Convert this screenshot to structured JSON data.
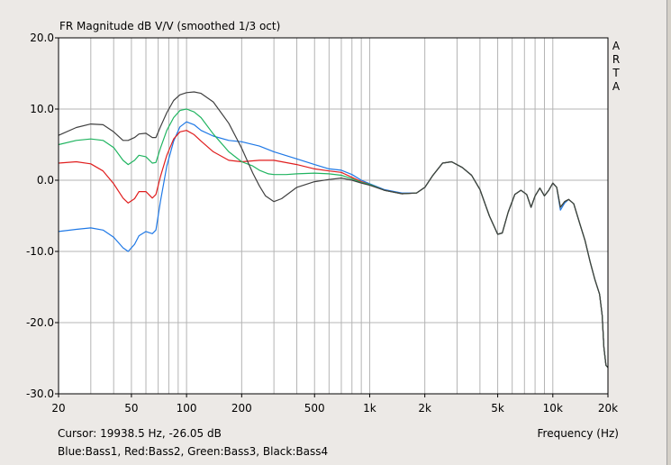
{
  "chart_data": {
    "type": "line",
    "title": "FR Magnitude dB V/V (smoothed 1/3 oct)",
    "side_label": "A R T A",
    "xlabel": "Frequency (Hz)",
    "xscale": "log",
    "xlim": [
      20,
      20000
    ],
    "ylim": [
      -30,
      20
    ],
    "grid": true,
    "x_ticks": [
      {
        "v": 20,
        "label": "20"
      },
      {
        "v": 50,
        "label": "50"
      },
      {
        "v": 100,
        "label": "100"
      },
      {
        "v": 200,
        "label": "200"
      },
      {
        "v": 500,
        "label": "500"
      },
      {
        "v": 1000,
        "label": "1k"
      },
      {
        "v": 2000,
        "label": "2k"
      },
      {
        "v": 5000,
        "label": "5k"
      },
      {
        "v": 10000,
        "label": "10k"
      },
      {
        "v": 20000,
        "label": "20k"
      }
    ],
    "y_ticks": [
      {
        "v": 20,
        "label": "20.0"
      },
      {
        "v": 10,
        "label": "10.0"
      },
      {
        "v": 0,
        "label": "0.0"
      },
      {
        "v": -10,
        "label": "-10.0"
      },
      {
        "v": -20,
        "label": "-20.0"
      },
      {
        "v": -30,
        "label": "-30.0"
      }
    ],
    "series": [
      {
        "name": "Bass1",
        "color": "#1e78e6",
        "points": [
          [
            20,
            -7.2
          ],
          [
            25,
            -6.9
          ],
          [
            30,
            -6.7
          ],
          [
            35,
            -7.0
          ],
          [
            40,
            -8.0
          ],
          [
            45,
            -9.5
          ],
          [
            48,
            -10.0
          ],
          [
            52,
            -9.0
          ],
          [
            55,
            -7.8
          ],
          [
            60,
            -7.2
          ],
          [
            65,
            -7.5
          ],
          [
            68,
            -7.0
          ],
          [
            72,
            -3.0
          ],
          [
            78,
            2.0
          ],
          [
            85,
            5.5
          ],
          [
            92,
            7.5
          ],
          [
            100,
            8.2
          ],
          [
            110,
            7.8
          ],
          [
            120,
            7.0
          ],
          [
            140,
            6.2
          ],
          [
            170,
            5.6
          ],
          [
            200,
            5.4
          ],
          [
            250,
            4.8
          ],
          [
            300,
            4.0
          ],
          [
            400,
            3.0
          ],
          [
            500,
            2.2
          ],
          [
            600,
            1.6
          ],
          [
            700,
            1.4
          ],
          [
            800,
            0.8
          ],
          [
            900,
            0.0
          ],
          [
            1000,
            -0.5
          ],
          [
            1200,
            -1.3
          ],
          [
            1500,
            -1.8
          ],
          [
            1800,
            -1.8
          ],
          [
            2000,
            -1.0
          ],
          [
            2200,
            0.6
          ],
          [
            2500,
            2.4
          ],
          [
            2800,
            2.6
          ],
          [
            3200,
            1.8
          ],
          [
            3600,
            0.7
          ],
          [
            4000,
            -1.3
          ],
          [
            4500,
            -5.0
          ],
          [
            5000,
            -7.6
          ],
          [
            5300,
            -7.4
          ],
          [
            5700,
            -4.5
          ],
          [
            6200,
            -2.0
          ],
          [
            6700,
            -1.4
          ],
          [
            7200,
            -2.0
          ],
          [
            7600,
            -3.8
          ],
          [
            8000,
            -2.2
          ],
          [
            8500,
            -1.1
          ],
          [
            9000,
            -2.2
          ],
          [
            9500,
            -1.4
          ],
          [
            10000,
            -0.4
          ],
          [
            10500,
            -1.0
          ],
          [
            11000,
            -4.2
          ],
          [
            11600,
            -3.2
          ],
          [
            12200,
            -2.7
          ],
          [
            13000,
            -3.3
          ],
          [
            14000,
            -6.0
          ],
          [
            15000,
            -8.5
          ],
          [
            16000,
            -11.5
          ],
          [
            17000,
            -14.0
          ],
          [
            18000,
            -16.0
          ],
          [
            18600,
            -19.0
          ],
          [
            19000,
            -23.5
          ],
          [
            19500,
            -26.0
          ],
          [
            20000,
            -26.3
          ]
        ]
      },
      {
        "name": "Bass2",
        "color": "#e01e1e",
        "points": [
          [
            20,
            2.4
          ],
          [
            25,
            2.6
          ],
          [
            30,
            2.3
          ],
          [
            35,
            1.3
          ],
          [
            40,
            -0.5
          ],
          [
            45,
            -2.5
          ],
          [
            48,
            -3.2
          ],
          [
            52,
            -2.6
          ],
          [
            55,
            -1.6
          ],
          [
            60,
            -1.6
          ],
          [
            65,
            -2.5
          ],
          [
            68,
            -2.0
          ],
          [
            72,
            0.5
          ],
          [
            78,
            3.5
          ],
          [
            85,
            5.8
          ],
          [
            92,
            6.8
          ],
          [
            100,
            7.0
          ],
          [
            110,
            6.4
          ],
          [
            120,
            5.5
          ],
          [
            140,
            4.0
          ],
          [
            170,
            2.8
          ],
          [
            200,
            2.6
          ],
          [
            250,
            2.8
          ],
          [
            300,
            2.8
          ],
          [
            400,
            2.2
          ],
          [
            500,
            1.6
          ],
          [
            600,
            1.3
          ],
          [
            700,
            1.1
          ],
          [
            800,
            0.4
          ],
          [
            900,
            -0.2
          ],
          [
            1000,
            -0.6
          ],
          [
            1200,
            -1.4
          ],
          [
            1500,
            -1.9
          ],
          [
            1800,
            -1.8
          ],
          [
            2000,
            -1.0
          ],
          [
            2200,
            0.6
          ],
          [
            2500,
            2.4
          ],
          [
            2800,
            2.6
          ],
          [
            3200,
            1.8
          ],
          [
            3600,
            0.7
          ],
          [
            4000,
            -1.3
          ],
          [
            4500,
            -5.0
          ],
          [
            5000,
            -7.6
          ],
          [
            5300,
            -7.4
          ],
          [
            5700,
            -4.5
          ],
          [
            6200,
            -2.0
          ],
          [
            6700,
            -1.4
          ],
          [
            7200,
            -2.0
          ],
          [
            7600,
            -3.8
          ],
          [
            8000,
            -2.2
          ],
          [
            8500,
            -1.1
          ],
          [
            9000,
            -2.2
          ],
          [
            9500,
            -1.4
          ],
          [
            10000,
            -0.4
          ],
          [
            10500,
            -1.0
          ],
          [
            11000,
            -3.8
          ],
          [
            11600,
            -3.0
          ],
          [
            12200,
            -2.7
          ],
          [
            13000,
            -3.3
          ],
          [
            14000,
            -6.0
          ],
          [
            15000,
            -8.5
          ],
          [
            16000,
            -11.5
          ],
          [
            17000,
            -14.0
          ],
          [
            18000,
            -16.0
          ],
          [
            18600,
            -19.0
          ],
          [
            19000,
            -23.5
          ],
          [
            19500,
            -26.0
          ],
          [
            20000,
            -26.3
          ]
        ]
      },
      {
        "name": "Bass3",
        "color": "#20b460",
        "points": [
          [
            20,
            5.0
          ],
          [
            25,
            5.6
          ],
          [
            30,
            5.8
          ],
          [
            35,
            5.6
          ],
          [
            40,
            4.6
          ],
          [
            45,
            2.8
          ],
          [
            48,
            2.2
          ],
          [
            52,
            2.8
          ],
          [
            55,
            3.5
          ],
          [
            60,
            3.3
          ],
          [
            65,
            2.4
          ],
          [
            68,
            2.5
          ],
          [
            72,
            4.5
          ],
          [
            78,
            7.0
          ],
          [
            85,
            8.8
          ],
          [
            92,
            9.8
          ],
          [
            100,
            10.0
          ],
          [
            110,
            9.6
          ],
          [
            120,
            8.8
          ],
          [
            140,
            6.5
          ],
          [
            170,
            4.0
          ],
          [
            200,
            2.6
          ],
          [
            230,
            2.0
          ],
          [
            250,
            1.4
          ],
          [
            280,
            0.9
          ],
          [
            300,
            0.8
          ],
          [
            350,
            0.8
          ],
          [
            400,
            0.9
          ],
          [
            500,
            1.0
          ],
          [
            600,
            0.9
          ],
          [
            700,
            0.7
          ],
          [
            800,
            0.2
          ],
          [
            900,
            -0.3
          ],
          [
            1000,
            -0.6
          ],
          [
            1200,
            -1.4
          ],
          [
            1500,
            -1.9
          ],
          [
            1800,
            -1.8
          ],
          [
            2000,
            -1.0
          ],
          [
            2200,
            0.6
          ],
          [
            2500,
            2.4
          ],
          [
            2800,
            2.6
          ],
          [
            3200,
            1.8
          ],
          [
            3600,
            0.7
          ],
          [
            4000,
            -1.3
          ],
          [
            4500,
            -5.0
          ],
          [
            5000,
            -7.6
          ],
          [
            5300,
            -7.4
          ],
          [
            5700,
            -4.5
          ],
          [
            6200,
            -2.0
          ],
          [
            6700,
            -1.4
          ],
          [
            7200,
            -2.0
          ],
          [
            7600,
            -3.8
          ],
          [
            8000,
            -2.2
          ],
          [
            8500,
            -1.1
          ],
          [
            9000,
            -2.2
          ],
          [
            9500,
            -1.4
          ],
          [
            10000,
            -0.4
          ],
          [
            10500,
            -1.0
          ],
          [
            11000,
            -3.8
          ],
          [
            11600,
            -3.0
          ],
          [
            12200,
            -2.7
          ],
          [
            13000,
            -3.3
          ],
          [
            14000,
            -6.0
          ],
          [
            15000,
            -8.5
          ],
          [
            16000,
            -11.5
          ],
          [
            17000,
            -14.0
          ],
          [
            18000,
            -16.0
          ],
          [
            18600,
            -19.0
          ],
          [
            19000,
            -23.5
          ],
          [
            19500,
            -26.0
          ],
          [
            20000,
            -26.3
          ]
        ]
      },
      {
        "name": "Bass4",
        "color": "#404040",
        "points": [
          [
            20,
            6.3
          ],
          [
            25,
            7.4
          ],
          [
            30,
            7.9
          ],
          [
            35,
            7.8
          ],
          [
            40,
            6.8
          ],
          [
            45,
            5.6
          ],
          [
            48,
            5.6
          ],
          [
            52,
            6.0
          ],
          [
            55,
            6.5
          ],
          [
            60,
            6.6
          ],
          [
            65,
            6.0
          ],
          [
            68,
            6.0
          ],
          [
            72,
            7.5
          ],
          [
            78,
            9.5
          ],
          [
            85,
            11.2
          ],
          [
            92,
            12.0
          ],
          [
            100,
            12.3
          ],
          [
            110,
            12.4
          ],
          [
            120,
            12.2
          ],
          [
            140,
            11.0
          ],
          [
            170,
            8.0
          ],
          [
            200,
            4.5
          ],
          [
            230,
            1.0
          ],
          [
            250,
            -0.8
          ],
          [
            270,
            -2.2
          ],
          [
            300,
            -3.0
          ],
          [
            330,
            -2.6
          ],
          [
            400,
            -1.0
          ],
          [
            500,
            -0.2
          ],
          [
            600,
            0.1
          ],
          [
            700,
            0.3
          ],
          [
            800,
            0.0
          ],
          [
            900,
            -0.4
          ],
          [
            1000,
            -0.7
          ],
          [
            1200,
            -1.4
          ],
          [
            1500,
            -1.9
          ],
          [
            1800,
            -1.8
          ],
          [
            2000,
            -1.0
          ],
          [
            2200,
            0.6
          ],
          [
            2500,
            2.4
          ],
          [
            2800,
            2.6
          ],
          [
            3200,
            1.8
          ],
          [
            3600,
            0.7
          ],
          [
            4000,
            -1.3
          ],
          [
            4500,
            -5.0
          ],
          [
            5000,
            -7.6
          ],
          [
            5300,
            -7.4
          ],
          [
            5700,
            -4.5
          ],
          [
            6200,
            -2.0
          ],
          [
            6700,
            -1.4
          ],
          [
            7200,
            -2.0
          ],
          [
            7600,
            -3.8
          ],
          [
            8000,
            -2.2
          ],
          [
            8500,
            -1.1
          ],
          [
            9000,
            -2.2
          ],
          [
            9500,
            -1.4
          ],
          [
            10000,
            -0.4
          ],
          [
            10500,
            -1.0
          ],
          [
            11000,
            -3.8
          ],
          [
            11600,
            -3.0
          ],
          [
            12200,
            -2.7
          ],
          [
            13000,
            -3.3
          ],
          [
            14000,
            -6.0
          ],
          [
            15000,
            -8.5
          ],
          [
            16000,
            -11.5
          ],
          [
            17000,
            -14.0
          ],
          [
            18000,
            -16.0
          ],
          [
            18600,
            -19.0
          ],
          [
            19000,
            -23.5
          ],
          [
            19500,
            -26.0
          ],
          [
            20000,
            -26.3
          ]
        ]
      }
    ]
  },
  "status": {
    "cursor_readout": "Cursor: 19938.5 Hz, -26.05 dB",
    "legend_text": "Blue:Bass1, Red:Bass2, Green:Bass3, Black:Bass4"
  },
  "colors": {
    "background": "#ece9e6",
    "plot_background": "#ffffff",
    "grid": "#b4b4b4"
  }
}
